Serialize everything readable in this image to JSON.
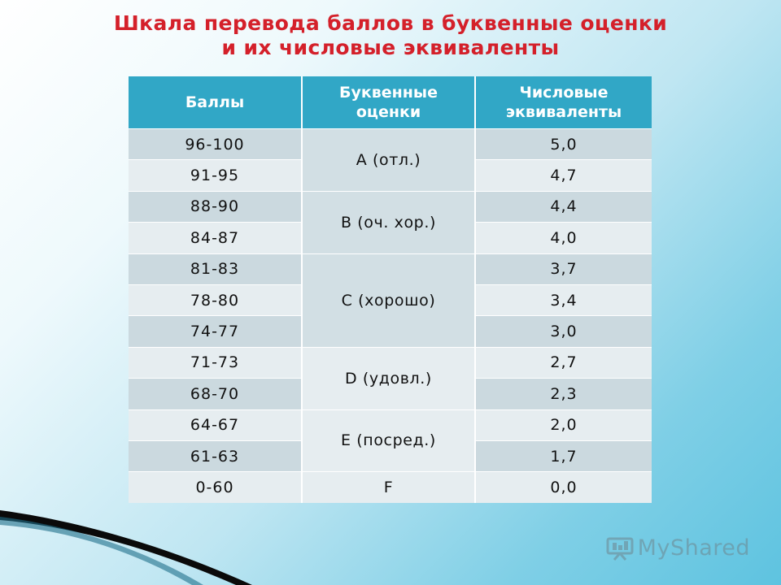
{
  "title": {
    "line1": "Шкала перевода баллов в буквенные оценки",
    "line2": "и их числовые эквиваленты"
  },
  "table": {
    "headers": [
      "Баллы",
      "Буквенные оценки",
      "Числовые эквиваленты"
    ],
    "rows": [
      {
        "score": "96-100",
        "num": "5,0"
      },
      {
        "score": "91-95",
        "num": "4,7"
      },
      {
        "score": "88-90",
        "num": "4,4"
      },
      {
        "score": "84-87",
        "num": "4,0"
      },
      {
        "score": "81-83",
        "num": "3,7"
      },
      {
        "score": "78-80",
        "num": "3,4"
      },
      {
        "score": "74-77",
        "num": "3,0"
      },
      {
        "score": "71-73",
        "num": "2,7"
      },
      {
        "score": "68-70",
        "num": "2,3"
      },
      {
        "score": "64-67",
        "num": "2,0"
      },
      {
        "score": "61-63",
        "num": "1,7"
      },
      {
        "score": "0-60",
        "num": "0,0"
      }
    ],
    "letters": [
      "A (отл.)",
      "B (оч. хор.)",
      "C (хорошо)",
      "D (удовл.)",
      "E (посред.)",
      "F"
    ]
  },
  "watermark": {
    "text": "MyShared",
    "icon": "presentation-board-icon"
  },
  "colors": {
    "title": "#d4202a",
    "header": "#31a7c6",
    "row_band": "#cbd9df",
    "row_plain": "#e6edf0"
  }
}
